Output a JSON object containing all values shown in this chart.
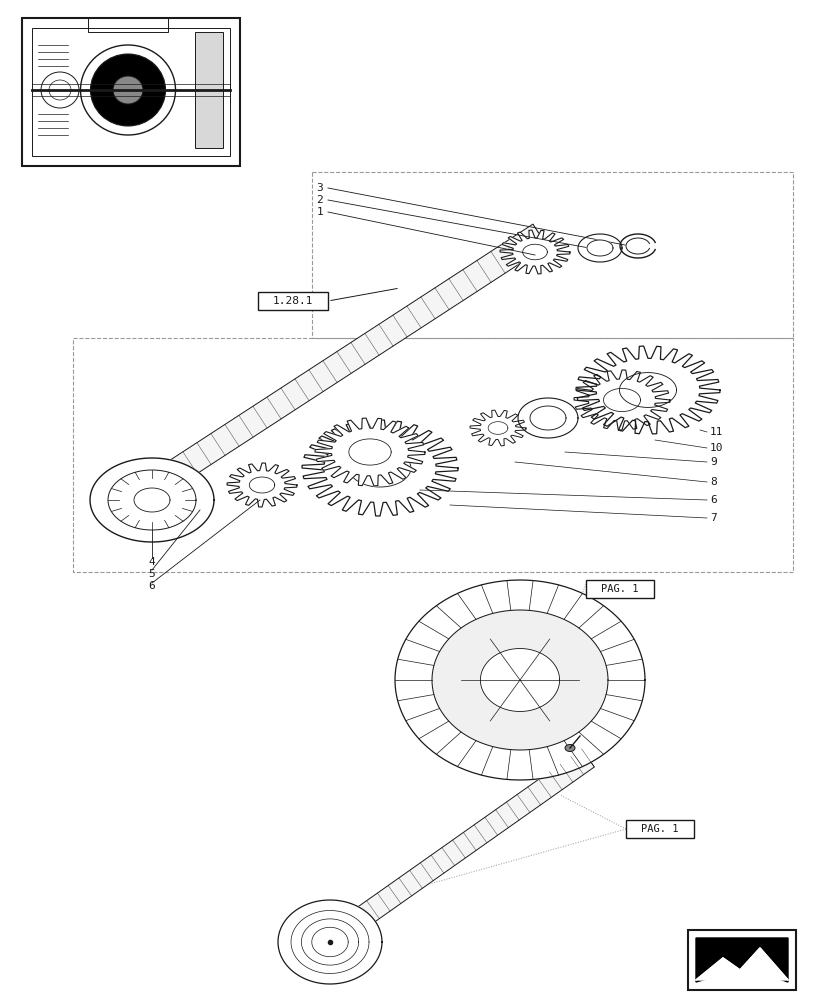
{
  "bg_color": "#ffffff",
  "line_color": "#1a1a1a",
  "dash_color": "#999999",
  "fig_width": 8.28,
  "fig_height": 10.0,
  "label_128_1": "1.28.1",
  "label_pag1": "PAG. 1"
}
